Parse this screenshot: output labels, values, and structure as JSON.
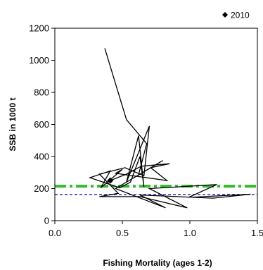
{
  "chart_data": {
    "type": "line",
    "title": "",
    "xlabel": "Fishing Mortality (ages 1-2)",
    "ylabel": "SSB in 1000 t",
    "xlim": [
      0,
      1.5
    ],
    "ylim": [
      0,
      1200
    ],
    "x_ticks": [
      0.0,
      0.5,
      1.0,
      1.5
    ],
    "x_tick_labels": [
      "0.0",
      "0.5",
      "1.0",
      "1.5"
    ],
    "y_ticks": [
      0,
      200,
      400,
      600,
      800,
      1000,
      1200
    ],
    "y_tick_labels": [
      "0",
      "200",
      "400",
      "600",
      "800",
      "1000",
      "1200"
    ],
    "grid": false,
    "legend_position": "top-right",
    "legend_label": "2010",
    "trajectory": {
      "color": "#000000",
      "points": [
        [
          0.37,
          1075
        ],
        [
          0.53,
          630
        ],
        [
          0.68,
          480
        ],
        [
          0.62,
          285
        ],
        [
          0.8,
          375
        ],
        [
          0.71,
          330
        ],
        [
          0.83,
          250
        ],
        [
          0.45,
          295
        ],
        [
          0.5,
          320
        ],
        [
          0.34,
          205
        ],
        [
          0.41,
          310
        ],
        [
          0.26,
          268
        ],
        [
          0.48,
          205
        ],
        [
          0.56,
          240
        ],
        [
          0.63,
          400
        ],
        [
          0.66,
          210
        ],
        [
          0.62,
          530
        ],
        [
          0.53,
          240
        ],
        [
          0.7,
          590
        ],
        [
          0.66,
          280
        ],
        [
          0.52,
          330
        ],
        [
          0.33,
          290
        ],
        [
          0.47,
          170
        ],
        [
          0.33,
          150
        ],
        [
          0.63,
          150
        ],
        [
          0.98,
          80
        ],
        [
          0.7,
          200
        ],
        [
          1.2,
          225
        ],
        [
          0.99,
          145
        ],
        [
          1.45,
          165
        ],
        [
          1.17,
          140
        ],
        [
          0.63,
          160
        ],
        [
          0.82,
          80
        ],
        [
          0.45,
          200
        ],
        [
          0.71,
          330
        ],
        [
          0.85,
          355
        ],
        [
          0.64,
          340
        ],
        [
          0.53,
          290
        ],
        [
          0.41,
          250
        ]
      ]
    },
    "final_point": {
      "label": "2010",
      "x": 0.41,
      "y": 250,
      "marker": "diamond"
    },
    "reference_lines": [
      {
        "y": 215,
        "color": "#33bb33",
        "style": "dash-dot"
      },
      {
        "y": 163,
        "color": "#1a1acc",
        "style": "dashed"
      }
    ]
  }
}
